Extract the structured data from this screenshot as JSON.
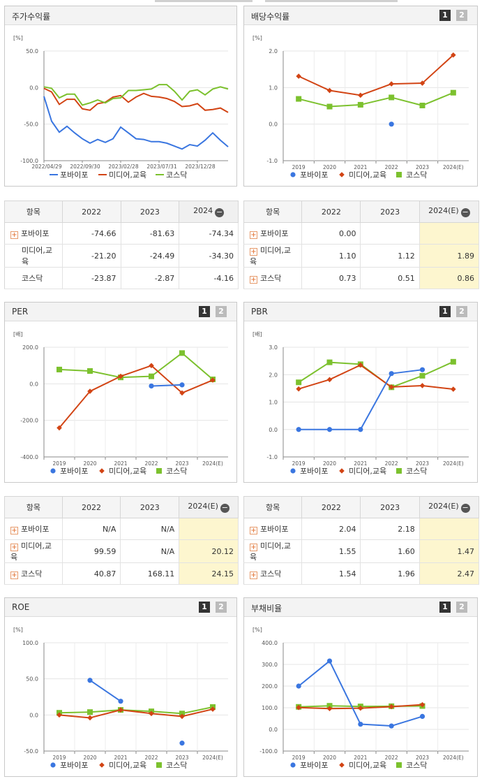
{
  "legend": [
    "포바이포",
    "미디어,교육",
    "코스닥"
  ],
  "colors": {
    "s1": "#3a76e0",
    "s2": "#d24414",
    "s3": "#7cc12e"
  },
  "panels": {
    "stock": {
      "title": "주가수익률",
      "unit": "[%]"
    },
    "dividend": {
      "title": "배당수익률",
      "unit": "[%]"
    },
    "per": {
      "title": "PER",
      "unit": "[배]"
    },
    "pbr": {
      "title": "PBR",
      "unit": "[배]"
    },
    "roe": {
      "title": "ROE",
      "unit": "[%]"
    },
    "debt": {
      "title": "부채비율",
      "unit": "[%]"
    }
  },
  "pager": {
    "p1": "1",
    "p2": "2"
  },
  "chart_data": [
    {
      "id": "stock",
      "type": "line",
      "title": "주가수익률",
      "ylabel": "[%]",
      "ylim": [
        -100,
        50
      ],
      "yticks": [
        "50.0",
        "0.0",
        "-50.0",
        "-100.0"
      ],
      "xticks": [
        "2022/04/29",
        "2022/09/30",
        "2023/02/28",
        "2023/07/31",
        "2023/12/28"
      ],
      "series": [
        {
          "name": "포바이포",
          "values": [
            -12,
            -46,
            -61,
            -53,
            -62,
            -70,
            -76,
            -71,
            -75,
            -70,
            -54,
            -62,
            -70,
            -71,
            -74,
            -74,
            -76,
            -80,
            -84,
            -78,
            -80,
            -72,
            -62,
            -72,
            -81
          ]
        },
        {
          "name": "미디어,교육",
          "values": [
            -1,
            -6,
            -23,
            -16,
            -16,
            -29,
            -31,
            -22,
            -20,
            -13,
            -11,
            -20,
            -13,
            -8,
            -12,
            -13,
            -15,
            -19,
            -26,
            -25,
            -22,
            -31,
            -30,
            -28,
            -34
          ]
        },
        {
          "name": "코스닥",
          "values": [
            1,
            -1,
            -14,
            -9,
            -9,
            -24,
            -21,
            -17,
            -21,
            -15,
            -14,
            -4,
            -4,
            -3,
            -2,
            4,
            4,
            -5,
            -17,
            -5,
            -3,
            -10,
            -2,
            1,
            -2
          ]
        }
      ]
    },
    {
      "id": "dividend",
      "type": "line",
      "title": "배당수익률",
      "ylabel": "[%]",
      "categories": [
        "2019",
        "2020",
        "2021",
        "2022",
        "2023",
        "2024(E)"
      ],
      "ylim": [
        -1,
        2
      ],
      "yticks": [
        "2.0",
        "1.0",
        "0.0",
        "-1.0"
      ],
      "series": [
        {
          "name": "포바이포",
          "values": [
            null,
            null,
            null,
            0.0,
            null,
            null
          ]
        },
        {
          "name": "미디어,교육",
          "values": [
            1.31,
            0.92,
            0.79,
            1.1,
            1.12,
            1.89
          ]
        },
        {
          "name": "코스닥",
          "values": [
            0.69,
            0.48,
            0.53,
            0.73,
            0.51,
            0.86
          ]
        }
      ]
    },
    {
      "id": "per",
      "type": "line",
      "title": "PER",
      "ylabel": "[배]",
      "categories": [
        "2019",
        "2020",
        "2021",
        "2022",
        "2023",
        "2024(E)"
      ],
      "ylim": [
        -400,
        200
      ],
      "yticks": [
        "200.0",
        "0.0",
        "-200.0",
        "-400.0"
      ],
      "series": [
        {
          "name": "포바이포",
          "values": [
            null,
            null,
            null,
            -12,
            -6,
            null
          ]
        },
        {
          "name": "미디어,교육",
          "values": [
            -241,
            -41,
            41,
            99.59,
            -50,
            20.12
          ]
        },
        {
          "name": "코스닥",
          "values": [
            78,
            70,
            35,
            40.87,
            168.11,
            24.15
          ]
        }
      ]
    },
    {
      "id": "pbr",
      "type": "line",
      "title": "PBR",
      "ylabel": "[배]",
      "categories": [
        "2019",
        "2020",
        "2021",
        "2022",
        "2023",
        "2024(E)"
      ],
      "ylim": [
        -1,
        3
      ],
      "yticks": [
        "3.0",
        "2.0",
        "1.0",
        "0.0",
        "-1.0"
      ],
      "series": [
        {
          "name": "포바이포",
          "values": [
            0.0,
            0.0,
            0.0,
            2.04,
            2.18,
            null
          ]
        },
        {
          "name": "미디어,교육",
          "values": [
            1.48,
            1.82,
            2.35,
            1.55,
            1.6,
            1.47
          ]
        },
        {
          "name": "코스닥",
          "values": [
            1.72,
            2.45,
            2.38,
            1.54,
            1.96,
            2.47
          ]
        }
      ]
    },
    {
      "id": "roe",
      "type": "line",
      "title": "ROE",
      "ylabel": "[%]",
      "categories": [
        "2019",
        "2020",
        "2021",
        "2022",
        "2023",
        "2024(E)"
      ],
      "ylim": [
        -50,
        100
      ],
      "yticks": [
        "100.0",
        "50.0",
        "0.0",
        "-50.0"
      ],
      "series": [
        {
          "name": "포바이포",
          "values": [
            null,
            48,
            19,
            null,
            -39,
            null
          ]
        },
        {
          "name": "미디어,교육",
          "values": [
            0,
            -4,
            7,
            2,
            -2,
            8
          ]
        },
        {
          "name": "코스닥",
          "values": [
            3,
            4,
            7,
            5,
            2,
            11
          ]
        }
      ]
    },
    {
      "id": "debt",
      "type": "line",
      "title": "부채비율",
      "ylabel": "[%]",
      "categories": [
        "2019",
        "2020",
        "2021",
        "2022",
        "2023",
        "2024(E)"
      ],
      "ylim": [
        -100,
        400
      ],
      "yticks": [
        "400.0",
        "300.0",
        "200.0",
        "100.0",
        "0.0",
        "-100.0"
      ],
      "series": [
        {
          "name": "포바이포",
          "values": [
            200,
            316,
            24,
            16,
            60,
            null
          ]
        },
        {
          "name": "미디어,교육",
          "values": [
            101,
            96,
            98,
            105,
            114,
            null
          ]
        },
        {
          "name": "코스닥",
          "values": [
            104,
            109,
            106,
            107,
            108,
            null
          ]
        }
      ]
    }
  ],
  "tables": {
    "stock": {
      "header": [
        "항목",
        "2022",
        "2023",
        "2024"
      ],
      "rows": [
        {
          "name": "포바이포",
          "plus": true,
          "vals": [
            "-74.66",
            "-81.63",
            "-74.34"
          ]
        },
        {
          "name": "미디어,교육",
          "plus": false,
          "vals": [
            "-21.20",
            "-24.49",
            "-34.30"
          ]
        },
        {
          "name": "코스닥",
          "plus": false,
          "vals": [
            "-23.87",
            "-2.87",
            "-4.16"
          ]
        }
      ]
    },
    "dividend": {
      "header": [
        "항목",
        "2022",
        "2023",
        "2024(E)"
      ],
      "rows": [
        {
          "name": "포바이포",
          "plus": true,
          "vals": [
            "0.00",
            "",
            ""
          ]
        },
        {
          "name": "미디어,교육",
          "plus": true,
          "vals": [
            "1.10",
            "1.12",
            "1.89"
          ]
        },
        {
          "name": "코스닥",
          "plus": true,
          "vals": [
            "0.73",
            "0.51",
            "0.86"
          ]
        }
      ]
    },
    "per": {
      "header": [
        "항목",
        "2022",
        "2023",
        "2024(E)"
      ],
      "rows": [
        {
          "name": "포바이포",
          "plus": true,
          "vals": [
            "N/A",
            "N/A",
            ""
          ]
        },
        {
          "name": "미디어,교육",
          "plus": true,
          "vals": [
            "99.59",
            "N/A",
            "20.12"
          ]
        },
        {
          "name": "코스닥",
          "plus": true,
          "vals": [
            "40.87",
            "168.11",
            "24.15"
          ]
        }
      ]
    },
    "pbr": {
      "header": [
        "항목",
        "2022",
        "2023",
        "2024(E)"
      ],
      "rows": [
        {
          "name": "포바이포",
          "plus": true,
          "vals": [
            "2.04",
            "2.18",
            ""
          ]
        },
        {
          "name": "미디어,교육",
          "plus": true,
          "vals": [
            "1.55",
            "1.60",
            "1.47"
          ]
        },
        {
          "name": "코스닥",
          "plus": true,
          "vals": [
            "1.54",
            "1.96",
            "2.47"
          ]
        }
      ]
    }
  }
}
